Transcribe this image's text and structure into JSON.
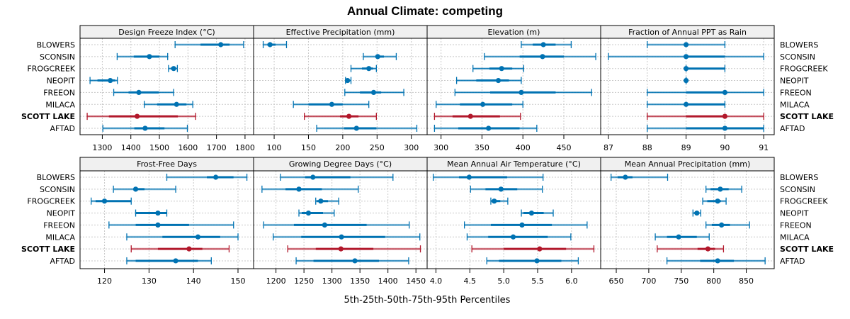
{
  "chart_data": {
    "type": "dot-interval",
    "title": "Annual Climate: competing",
    "xlabel": "5th-25th-50th-75th-95th Percentiles",
    "ylabel": "",
    "grid": true,
    "highlight_site": "SCOTT LAKE",
    "colors": {
      "default": "#0072b2",
      "highlight": "#b2182b"
    },
    "percentile_keys": [
      "p5",
      "p25",
      "p50",
      "p75",
      "p95"
    ],
    "sites": [
      "BLOWERS",
      "SCONSIN",
      "FROGCREEK",
      "NEOPIT",
      "FREEON",
      "MILACA",
      "SCOTT LAKE",
      "AFTAD"
    ],
    "panels": [
      {
        "title": "Design Freeze Index (°C)",
        "row": 1,
        "xlim": [
          1222,
          1830
        ],
        "ticks": [
          1300,
          1400,
          1500,
          1600,
          1700,
          1800
        ],
        "values": [
          [
            1555,
            1644,
            1715,
            1746,
            1795
          ],
          [
            1352,
            1410,
            1465,
            1500,
            1529
          ],
          [
            1532,
            1540,
            1550,
            1556,
            1563
          ],
          [
            1257,
            1283,
            1328,
            1345,
            1353
          ],
          [
            1340,
            1392,
            1428,
            1498,
            1550
          ],
          [
            1447,
            1492,
            1560,
            1595,
            1617
          ],
          [
            1247,
            1323,
            1422,
            1565,
            1627
          ],
          [
            1302,
            1412,
            1450,
            1518,
            1598
          ]
        ]
      },
      {
        "title": "Effective Precipitation (mm)",
        "row": 1,
        "xlim": [
          70,
          323
        ],
        "ticks": [
          100,
          150,
          200,
          250,
          300
        ],
        "values": [
          [
            84,
            90,
            94,
            102,
            118
          ],
          [
            230,
            248,
            251,
            260,
            278
          ],
          [
            212,
            228,
            238,
            244,
            249
          ],
          [
            204,
            205,
            207,
            210,
            212
          ],
          [
            203,
            225,
            245,
            256,
            289
          ],
          [
            128,
            150,
            184,
            200,
            238
          ],
          [
            144,
            196,
            209,
            223,
            249
          ],
          [
            162,
            202,
            220,
            249,
            308
          ]
        ]
      },
      {
        "title": "Elevation (m)",
        "row": 1,
        "xlim": [
          283,
          495
        ],
        "ticks": [
          300,
          350,
          400,
          450
        ],
        "values": [
          [
            398,
            412,
            425,
            440,
            459
          ],
          [
            353,
            396,
            424,
            450,
            489
          ],
          [
            339,
            359,
            374,
            387,
            401
          ],
          [
            319,
            343,
            370,
            383,
            398
          ],
          [
            317,
            360,
            398,
            440,
            484
          ],
          [
            294,
            323,
            351,
            387,
            400
          ],
          [
            292,
            314,
            336,
            372,
            397
          ],
          [
            292,
            321,
            358,
            396,
            417
          ]
        ]
      },
      {
        "title": "Fraction of Annual PPT as Rain",
        "row": 1,
        "xlim": [
          86.8,
          91.27
        ],
        "ticks": [
          87,
          88,
          89,
          90,
          91
        ],
        "values": [
          [
            88,
            89,
            89,
            89,
            90
          ],
          [
            87,
            89,
            89,
            90,
            91
          ],
          [
            89,
            89,
            89,
            90,
            90
          ],
          [
            89,
            89,
            89,
            89,
            89
          ],
          [
            88,
            89,
            90,
            90,
            91
          ],
          [
            88,
            89,
            89,
            90,
            90
          ],
          [
            88,
            89,
            90,
            90,
            91
          ],
          [
            88,
            89,
            90,
            91,
            91
          ]
        ]
      },
      {
        "title": "Frost-Free Days",
        "row": 2,
        "xlim": [
          114.5,
          153.5
        ],
        "ticks": [
          120,
          130,
          140,
          150
        ],
        "values": [
          [
            134,
            143,
            145,
            149,
            152
          ],
          [
            122,
            127,
            127,
            129,
            136
          ],
          [
            117,
            118,
            120,
            126,
            126
          ],
          [
            127,
            127,
            132,
            134,
            134
          ],
          [
            121,
            127,
            132,
            139,
            149
          ],
          [
            125,
            133,
            141,
            146,
            150
          ],
          [
            126,
            132,
            139,
            142,
            148
          ],
          [
            125,
            127,
            136,
            141,
            144
          ]
        ]
      },
      {
        "title": "Growing Degree Days (°C)",
        "row": 2,
        "xlim": [
          1160,
          1470
        ],
        "ticks": [
          1200,
          1250,
          1300,
          1350,
          1400,
          1450
        ],
        "values": [
          [
            1208,
            1252,
            1266,
            1333,
            1409
          ],
          [
            1175,
            1217,
            1241,
            1282,
            1347
          ],
          [
            1271,
            1273,
            1280,
            1293,
            1312
          ],
          [
            1241,
            1246,
            1258,
            1284,
            1304
          ],
          [
            1178,
            1232,
            1287,
            1362,
            1438
          ],
          [
            1195,
            1245,
            1317,
            1395,
            1457
          ],
          [
            1221,
            1271,
            1316,
            1374,
            1458
          ],
          [
            1236,
            1267,
            1341,
            1384,
            1437
          ]
        ]
      },
      {
        "title": "Mean Annual Air Temperature (°C)",
        "row": 2,
        "xlim": [
          3.87,
          6.43
        ],
        "ticks": [
          4.0,
          4.5,
          5.0,
          5.5,
          6.0
        ],
        "tick_labels": [
          "4.0",
          "4.5",
          "5.0",
          "5.5",
          "6.0"
        ],
        "values": [
          [
            3.96,
            4.34,
            4.49,
            5.05,
            5.58
          ],
          [
            4.51,
            4.73,
            4.96,
            5.2,
            5.57
          ],
          [
            4.81,
            4.82,
            4.86,
            4.95,
            5.06
          ],
          [
            5.26,
            5.29,
            5.41,
            5.59,
            5.73
          ],
          [
            4.42,
            4.81,
            5.27,
            5.71,
            6.23
          ],
          [
            4.46,
            4.77,
            5.14,
            5.65,
            5.99
          ],
          [
            4.53,
            5.0,
            5.53,
            5.92,
            6.33
          ],
          [
            4.75,
            4.93,
            5.49,
            5.85,
            6.1
          ]
        ]
      },
      {
        "title": "Mean Annual Precipitation (mm)",
        "row": 2,
        "xlim": [
          626,
          893
        ],
        "ticks": [
          650,
          700,
          750,
          800,
          850
        ],
        "values": [
          [
            642,
            652,
            664,
            675,
            729
          ],
          [
            788,
            795,
            810,
            823,
            843
          ],
          [
            783,
            790,
            806,
            811,
            819
          ],
          [
            768,
            770,
            774,
            777,
            780
          ],
          [
            788,
            797,
            812,
            825,
            855
          ],
          [
            710,
            728,
            746,
            774,
            793
          ],
          [
            713,
            775,
            791,
            802,
            815
          ],
          [
            728,
            779,
            806,
            831,
            879
          ]
        ]
      }
    ]
  }
}
